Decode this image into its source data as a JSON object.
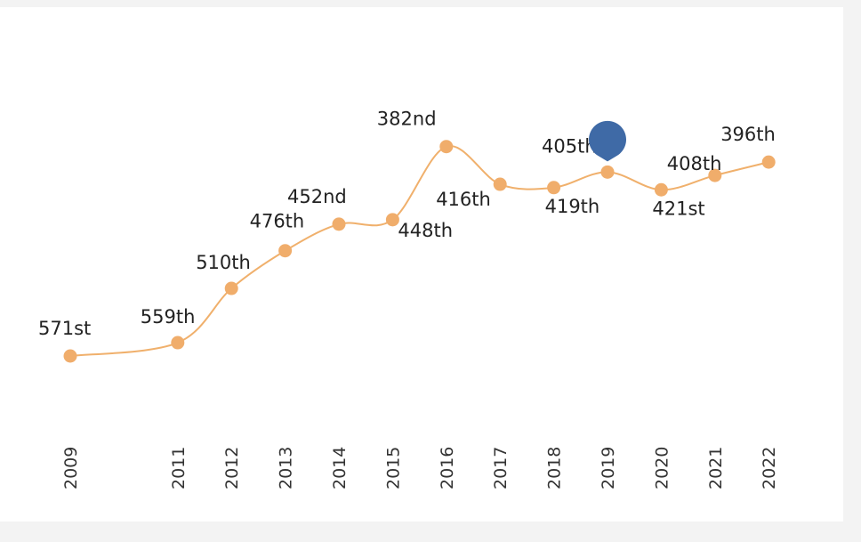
{
  "chart_data": {
    "type": "line",
    "title": "",
    "xlabel": "",
    "ylabel": "",
    "y_axis_inverted": true,
    "grid": false,
    "legend": "none",
    "line_color": "#f0b06c",
    "marker_color": "#f0ad6b",
    "highlight_marker_color": "#3f6aa6",
    "highlight_year": "2019",
    "x": [
      "2009",
      "2011",
      "2012",
      "2013",
      "2014",
      "2015",
      "2016",
      "2017",
      "2018",
      "2019",
      "2020",
      "2021",
      "2022"
    ],
    "values": [
      571,
      559,
      510,
      476,
      452,
      448,
      382,
      416,
      419,
      405,
      421,
      408,
      396
    ],
    "point_labels": [
      "571st",
      "559th",
      "510th",
      "476th",
      "452nd",
      "448th",
      "382nd",
      "416th",
      "419th",
      "405th",
      "421st",
      "408th",
      "396th"
    ]
  }
}
